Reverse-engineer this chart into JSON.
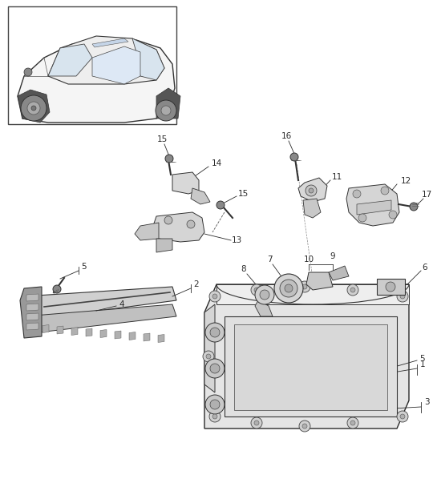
{
  "bg_color": "#ffffff",
  "fig_width": 5.45,
  "fig_height": 6.28,
  "dpi": 100,
  "line_color": "#2a2a2a",
  "fill_light": "#e8e8e8",
  "fill_med": "#cccccc",
  "fill_dark": "#aaaaaa"
}
